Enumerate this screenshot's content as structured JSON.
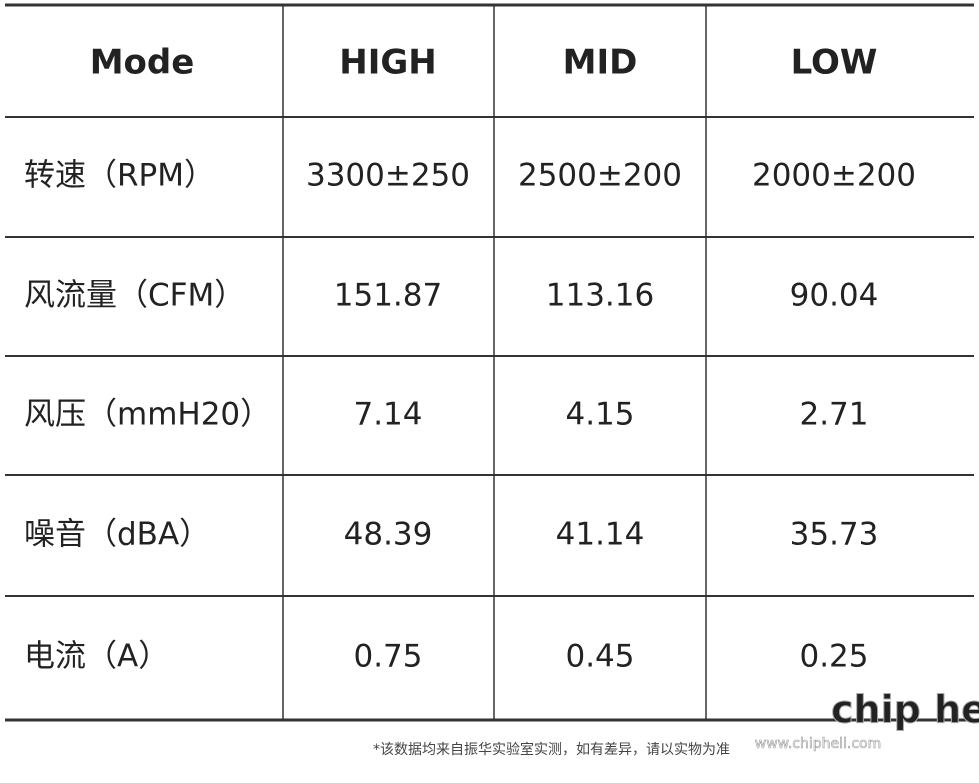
{
  "table": {
    "header": [
      "Mode",
      "HIGH",
      "MID",
      "LOW"
    ],
    "rows": [
      [
        "转速（RPM）",
        "3300±250",
        "2500±200",
        "2000±200"
      ],
      [
        "风流量（CFM）",
        "151.87",
        "113.16",
        "90.04"
      ],
      [
        "风压（mmH20）",
        "7.14",
        "4.15",
        "2.71"
      ],
      [
        "噪音（dBA）",
        "48.39",
        "41.14",
        "35.73"
      ],
      [
        "电流（A）",
        "0.75",
        "0.45",
        "0.25"
      ]
    ]
  },
  "footnote": "*该数据均来自振华实验室实测，如有差异，请以实物为准",
  "watermark": {
    "url": "www.chiphell.com",
    "logo": "chip hell"
  }
}
